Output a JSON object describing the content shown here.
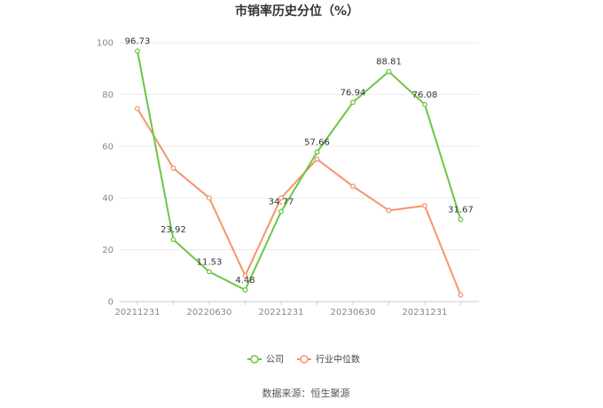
{
  "chart_data": {
    "type": "line",
    "title": "市销率历史分位（%）",
    "x": [
      "20211231",
      "20220331",
      "20220630",
      "20220930",
      "20221231",
      "20230331",
      "20230630",
      "20230930",
      "20231231",
      "20240331"
    ],
    "x_tick_labels": [
      "20211231",
      "20220630",
      "20221231",
      "20230630",
      "20231231"
    ],
    "ylim": [
      0,
      100
    ],
    "y_ticks": [
      0,
      20,
      40,
      60,
      80,
      100
    ],
    "grid": true,
    "legend_position": "bottom",
    "series": [
      {
        "name": "公司",
        "color": "#6cc644",
        "values": [
          96.73,
          23.92,
          11.53,
          4.48,
          34.77,
          57.66,
          76.94,
          88.81,
          76.08,
          31.67
        ],
        "labels": [
          "96.73",
          "23.92",
          "11.53",
          "4.48",
          "34.77",
          "57.66",
          "76.94",
          "88.81",
          "76.08",
          "31.67"
        ]
      },
      {
        "name": "行业中位数",
        "color": "#f4956b",
        "values": [
          74.5,
          51.5,
          40,
          10,
          40,
          55,
          44.5,
          35.2,
          37,
          2.5
        ]
      }
    ]
  },
  "source": "数据来源：恒生聚源"
}
